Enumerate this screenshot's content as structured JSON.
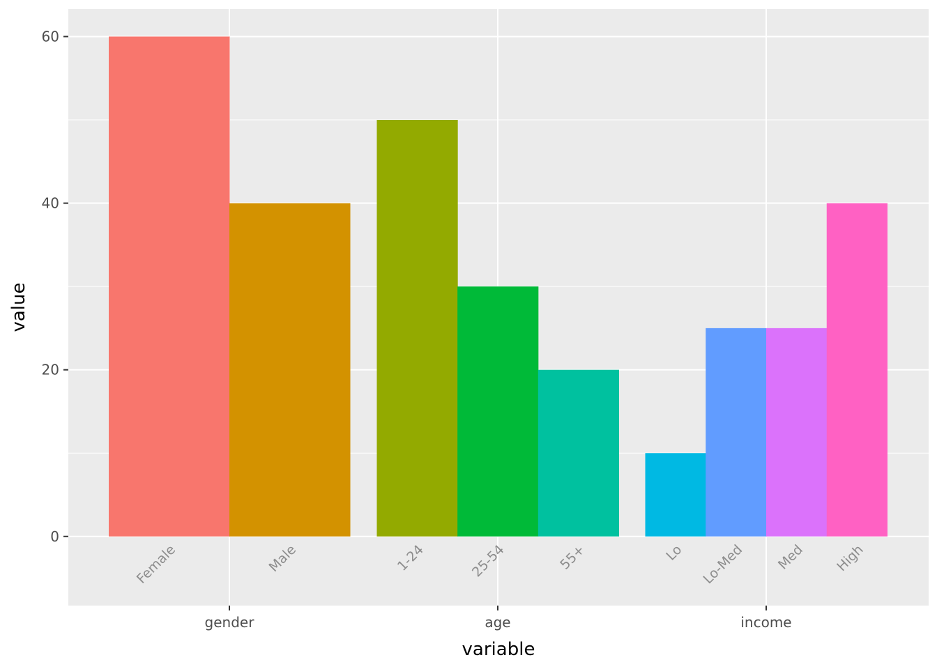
{
  "chart_data": {
    "type": "bar",
    "xlabel": "variable",
    "ylabel": "value",
    "ylim": [
      -8.3,
      63.3
    ],
    "y_ticks": [
      0,
      20,
      40,
      60
    ],
    "grid": true,
    "groups": [
      {
        "name": "gender",
        "bars": [
          {
            "label": "Female",
            "value": 60,
            "color": "#F8766D"
          },
          {
            "label": "Male",
            "value": 40,
            "color": "#D39200"
          }
        ]
      },
      {
        "name": "age",
        "bars": [
          {
            "label": "1-24",
            "value": 50,
            "color": "#93AA00"
          },
          {
            "label": "25-54",
            "value": 30,
            "color": "#00BA38"
          },
          {
            "label": "55+",
            "value": 20,
            "color": "#00C19F"
          }
        ]
      },
      {
        "name": "income",
        "bars": [
          {
            "label": "Lo",
            "value": 10,
            "color": "#00B9E3"
          },
          {
            "label": "Lo-Med",
            "value": 25,
            "color": "#619CFF"
          },
          {
            "label": "Med",
            "value": 25,
            "color": "#DB72FB"
          },
          {
            "label": "High",
            "value": 40,
            "color": "#FF61C3"
          }
        ]
      }
    ]
  }
}
